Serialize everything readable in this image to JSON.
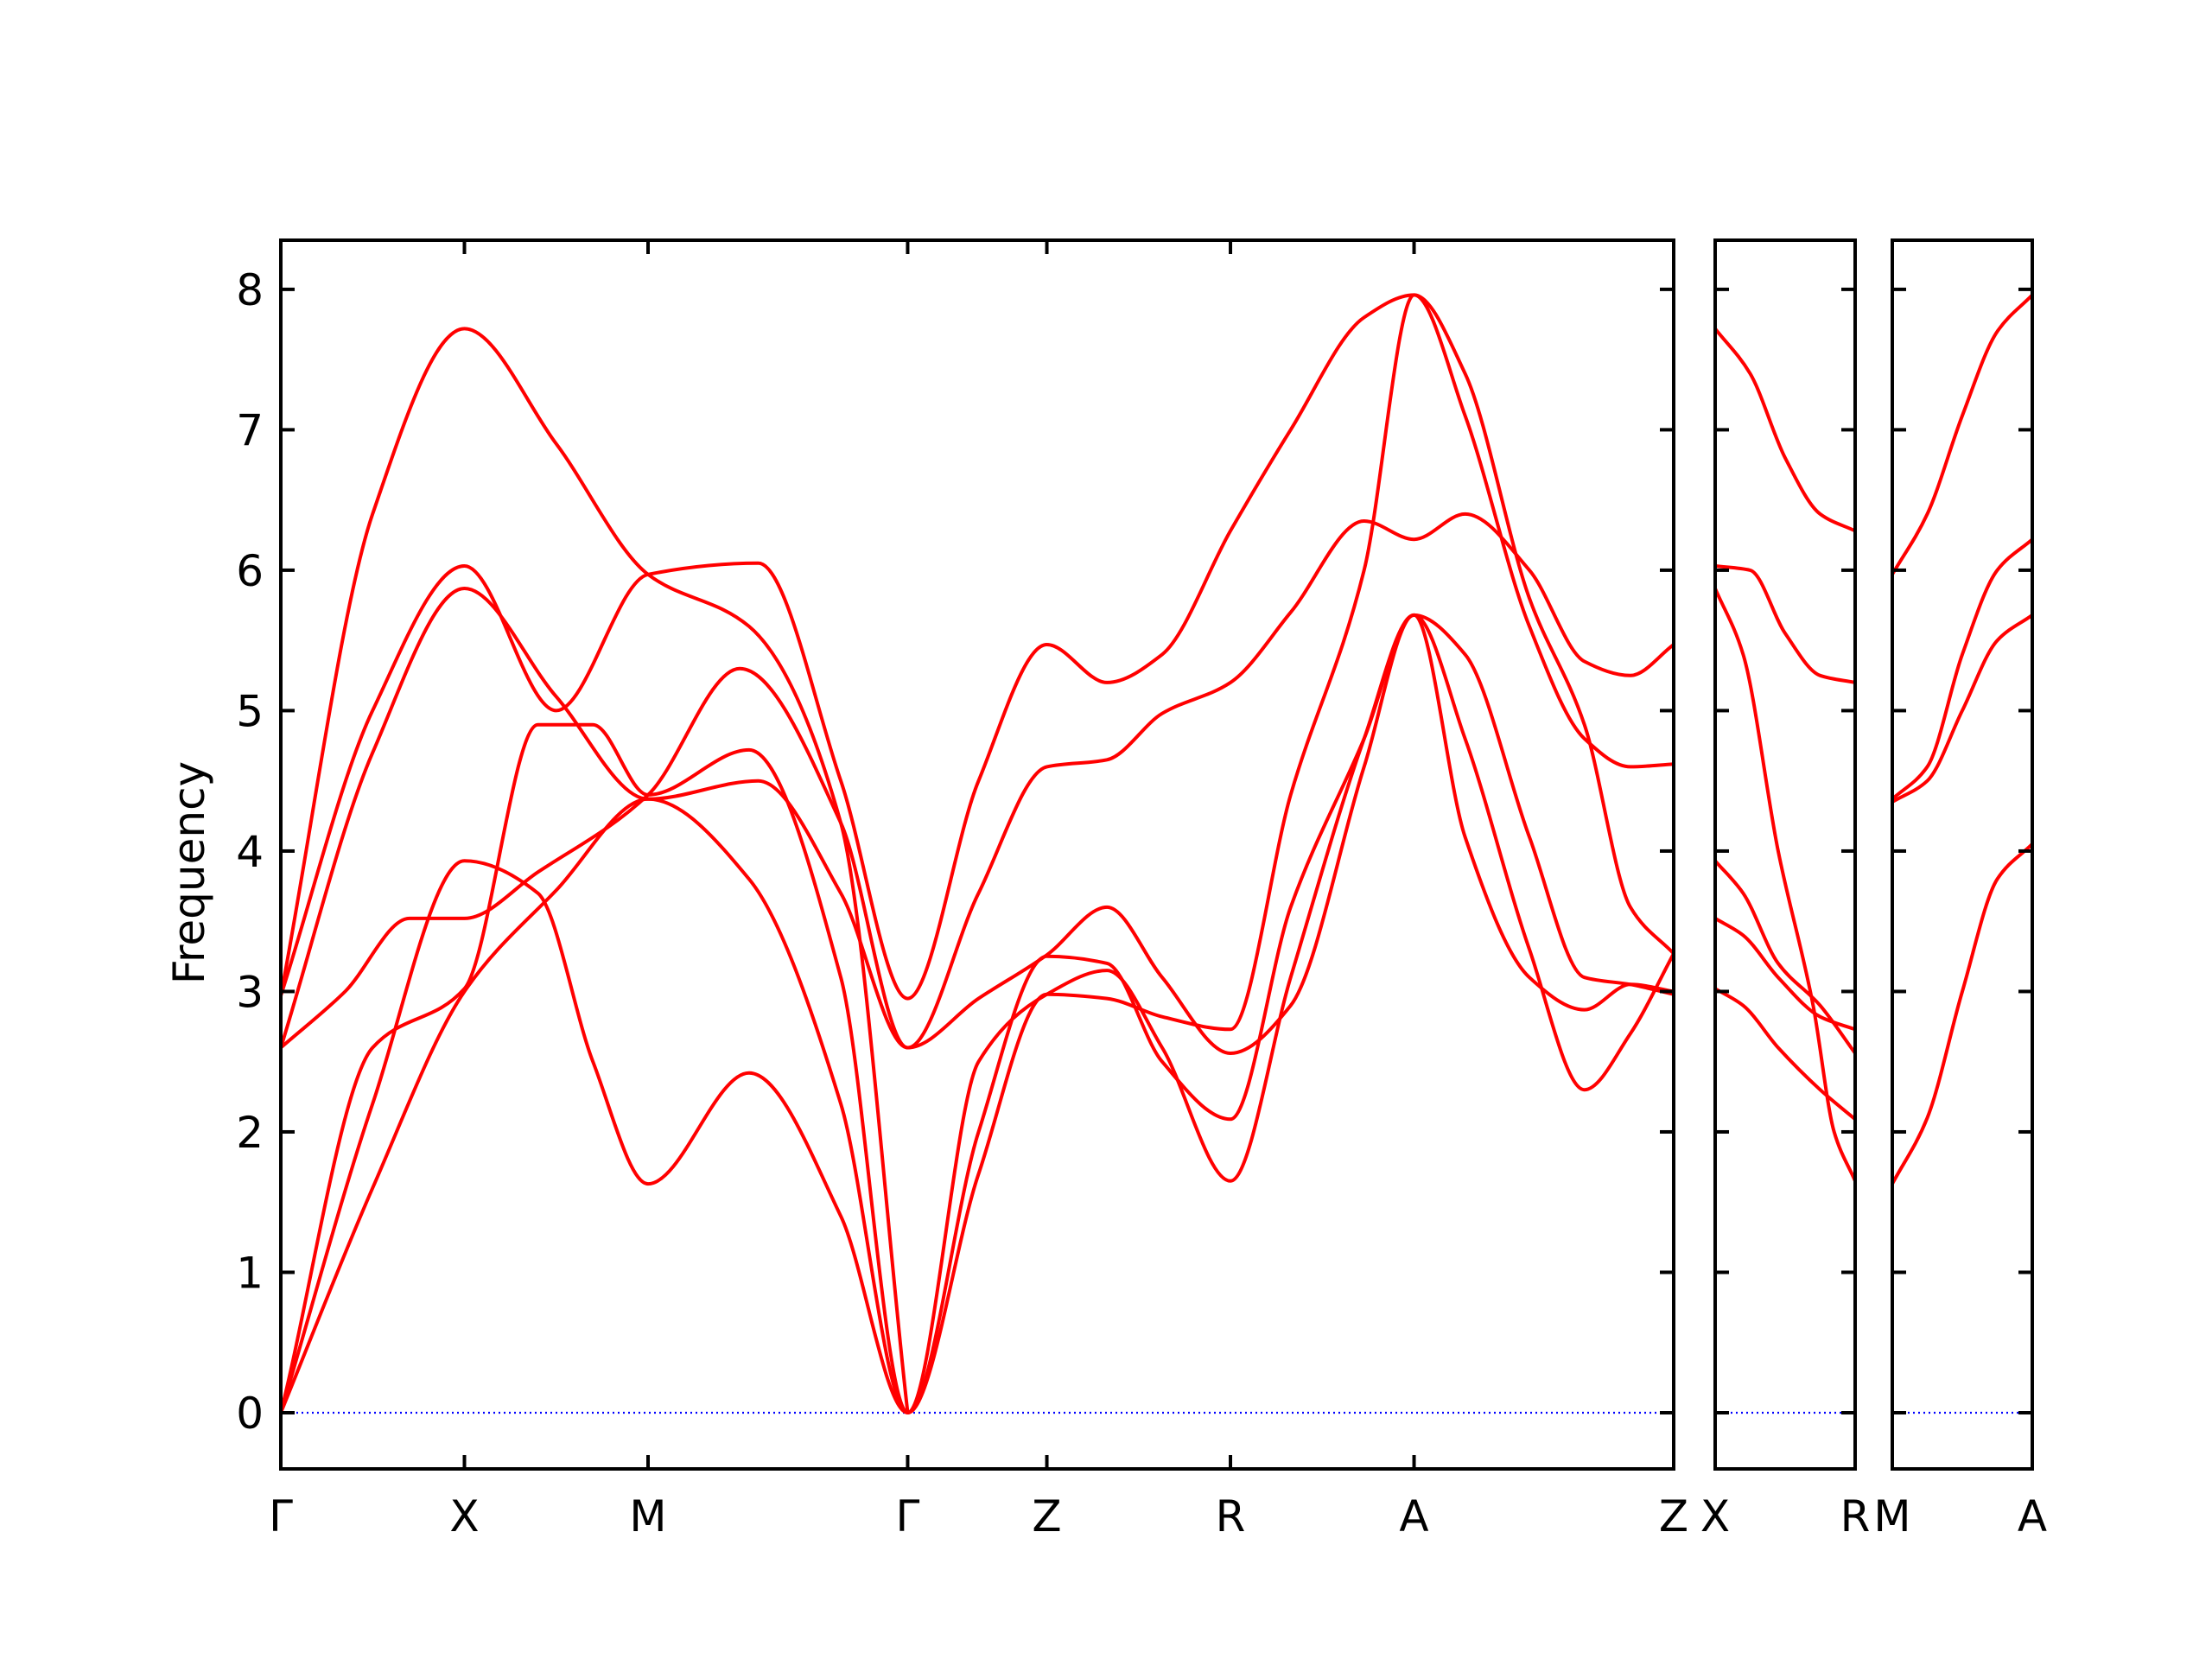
{
  "chart_data": {
    "type": "line",
    "title": "",
    "xlabel": "",
    "ylabel": "Frequency",
    "ylim": [
      -0.4,
      8.35
    ],
    "yticks": [
      0,
      1,
      2,
      3,
      4,
      5,
      6,
      7,
      8
    ],
    "grid": false,
    "colors": {
      "bands": "#ff0000",
      "zero_line": "#0000ff",
      "frame": "#000000"
    },
    "panels": [
      {
        "labels": [
          "Γ",
          "X",
          "M",
          "Γ",
          "Z",
          "R",
          "A",
          "Z"
        ],
        "positions": [
          0,
          1,
          2,
          3.414,
          4.172,
          5.172,
          6.172,
          7.586
        ],
        "series": [
          {
            "x": [
              0,
              0.5,
              1,
              1.5,
              2,
              2.55,
              3.05,
              3.414,
              3.8,
              4.172,
              4.5,
              4.8,
              5.172,
              5.5,
              5.9,
              6.172,
              6.45,
              6.8,
              7.1,
              7.35,
              7.586
            ],
            "y": [
              0,
              1.6,
              3.0,
              3.72,
              4.37,
              3.8,
              2.2,
              0,
              1.7,
              2.98,
              2.95,
              2.82,
              2.73,
              4.4,
              6.0,
              7.96,
              7.1,
              5.6,
              4.8,
              4.6,
              4.62
            ]
          },
          {
            "x": [
              0,
              0.5,
              1,
              1.4,
              1.7,
              2,
              2.55,
              3.05,
              3.414,
              3.8,
              4.172,
              4.5,
              4.8,
              5.172,
              5.5,
              5.9,
              6.172,
              6.45,
              6.8,
              7.1,
              7.35,
              7.586
            ],
            "y": [
              0,
              2.2,
              3.93,
              3.7,
              2.5,
              1.63,
              2.42,
              1.4,
              0,
              2.0,
              3.25,
              3.2,
              2.5,
              2.09,
              3.6,
              4.8,
              5.68,
              4.1,
              3.1,
              2.87,
              3.05,
              3.0
            ]
          },
          {
            "x": [
              0,
              0.5,
              1,
              1.4,
              1.7,
              2,
              2.55,
              3.05,
              3.414,
              3.8,
              4.172,
              4.5,
              4.8,
              5.172,
              5.5,
              5.9,
              6.172,
              6.45,
              6.8,
              7.1,
              7.35,
              7.586
            ],
            "y": [
              0,
              2.6,
              3.02,
              4.9,
              4.9,
              4.4,
              4.72,
              3.1,
              0,
              2.5,
              2.98,
              3.15,
              2.6,
              1.65,
              3.1,
              4.8,
              5.68,
              4.8,
              3.3,
              2.3,
              2.7,
              3.27
            ]
          },
          {
            "x": [
              0,
              0.35,
              0.7,
              1,
              1.4,
              2,
              2.5,
              3.05,
              3.414,
              3.8,
              4.172,
              4.5,
              4.8,
              5.172,
              5.5,
              5.9,
              6.172,
              6.45,
              6.8,
              7.1,
              7.35,
              7.586
            ],
            "y": [
              2.6,
              3.0,
              3.52,
              3.52,
              3.85,
              4.4,
              5.3,
              4.2,
              2.6,
              2.95,
              3.26,
              3.6,
              3.1,
              2.56,
              2.9,
              4.6,
              5.68,
              5.4,
              4.1,
              3.1,
              3.05,
              2.98
            ]
          },
          {
            "x": [
              0,
              0.5,
              1,
              1.5,
              2,
              2.6,
              3.05,
              3.414,
              3.8,
              4.172,
              4.5,
              4.8,
              5.172,
              5.5,
              5.9,
              6.172,
              6.45,
              6.8,
              7.1,
              7.35,
              7.586
            ],
            "y": [
              2.6,
              4.7,
              5.87,
              5.1,
              4.37,
              4.5,
              3.7,
              2.6,
              3.7,
              4.6,
              4.65,
              4.98,
              5.2,
              5.7,
              6.35,
              6.22,
              6.4,
              6.0,
              5.35,
              5.25,
              5.47
            ]
          },
          {
            "x": [
              0,
              0.5,
              1,
              1.5,
              2,
              2.6,
              3.05,
              3.414,
              3.8,
              4.172,
              4.5,
              4.8,
              5.172,
              5.5,
              5.9,
              6.172,
              6.45,
              6.8,
              7.1,
              7.35,
              7.586
            ],
            "y": [
              2.97,
              5.0,
              6.03,
              5.0,
              5.97,
              6.05,
              4.5,
              2.95,
              4.5,
              5.47,
              5.2,
              5.4,
              6.28,
              7.0,
              7.8,
              7.96,
              7.4,
              5.8,
              4.9,
              3.6,
              3.27
            ]
          },
          {
            "x": [
              0,
              0.5,
              1,
              1.5,
              2,
              2.55,
              3.05,
              3.414
            ],
            "y": [
              2.97,
              6.4,
              7.72,
              6.9,
              5.97,
              5.6,
              4.2,
              0
            ]
          }
        ]
      },
      {
        "labels": [
          "X",
          "R"
        ],
        "positions": [
          0,
          1
        ],
        "series": [
          {
            "x": [
              0,
              0.25,
              0.5,
              0.75,
              1
            ],
            "y": [
              7.72,
              7.4,
              6.8,
              6.4,
              6.28
            ]
          },
          {
            "x": [
              0,
              0.25,
              0.5,
              0.75,
              1
            ],
            "y": [
              6.03,
              6.0,
              5.55,
              5.25,
              5.2
            ]
          },
          {
            "x": [
              0,
              0.2,
              0.45,
              0.7,
              0.85,
              1
            ],
            "y": [
              5.87,
              5.4,
              4.0,
              2.9,
              2.0,
              1.65
            ]
          },
          {
            "x": [
              0,
              0.2,
              0.45,
              0.75,
              1
            ],
            "y": [
              3.93,
              3.7,
              3.2,
              2.9,
              2.56
            ]
          },
          {
            "x": [
              0,
              0.2,
              0.45,
              0.75,
              1
            ],
            "y": [
              3.52,
              3.4,
              3.1,
              2.82,
              2.73
            ]
          },
          {
            "x": [
              0,
              0.2,
              0.45,
              0.75,
              1
            ],
            "y": [
              3.02,
              2.9,
              2.6,
              2.3,
              2.09
            ]
          }
        ]
      },
      {
        "labels": [
          "M",
          "A"
        ],
        "positions": [
          0,
          1
        ],
        "series": [
          {
            "x": [
              0,
              0.25,
              0.5,
              0.75,
              1
            ],
            "y": [
              5.97,
              6.4,
              7.1,
              7.7,
              7.96
            ]
          },
          {
            "x": [
              0,
              0.25,
              0.5,
              0.75,
              1
            ],
            "y": [
              4.37,
              4.6,
              5.4,
              6.0,
              6.22
            ]
          },
          {
            "x": [
              0,
              0.25,
              0.5,
              0.75,
              1
            ],
            "y": [
              4.35,
              4.5,
              5.0,
              5.5,
              5.68
            ]
          },
          {
            "x": [
              0,
              0.25,
              0.5,
              0.75,
              1
            ],
            "y": [
              1.63,
              2.1,
              3.0,
              3.8,
              4.05
            ]
          }
        ]
      }
    ]
  }
}
